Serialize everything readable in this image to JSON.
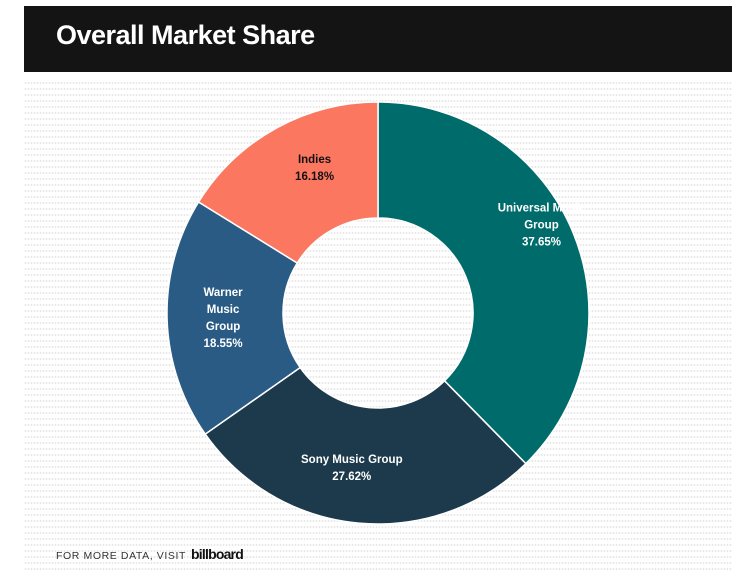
{
  "header": {
    "title": "Overall Market Share"
  },
  "chart_data": {
    "type": "pie",
    "donut": true,
    "title": "Overall Market Share",
    "start_angle_deg": 0,
    "direction": "clockwise",
    "slices": [
      {
        "label_lines": [
          "Universal Music",
          "Group"
        ],
        "value": 37.65,
        "value_label": "37.65%",
        "color": "#006b6b",
        "text_color": "#ffffff"
      },
      {
        "label_lines": [
          "Sony Music Group"
        ],
        "value": 27.62,
        "value_label": "27.62%",
        "color": "#1c3a4c",
        "text_color": "#ffffff"
      },
      {
        "label_lines": [
          "Warner",
          "Music",
          "Group"
        ],
        "value": 18.55,
        "value_label": "18.55%",
        "color": "#2a5b85",
        "text_color": "#ffffff"
      },
      {
        "label_lines": [
          "Indies"
        ],
        "value": 16.18,
        "value_label": "16.18%",
        "color": "#fc7760",
        "text_color": "#111111"
      }
    ]
  },
  "footer": {
    "text": "FOR MORE DATA, VISIT",
    "logo": "billboard"
  }
}
